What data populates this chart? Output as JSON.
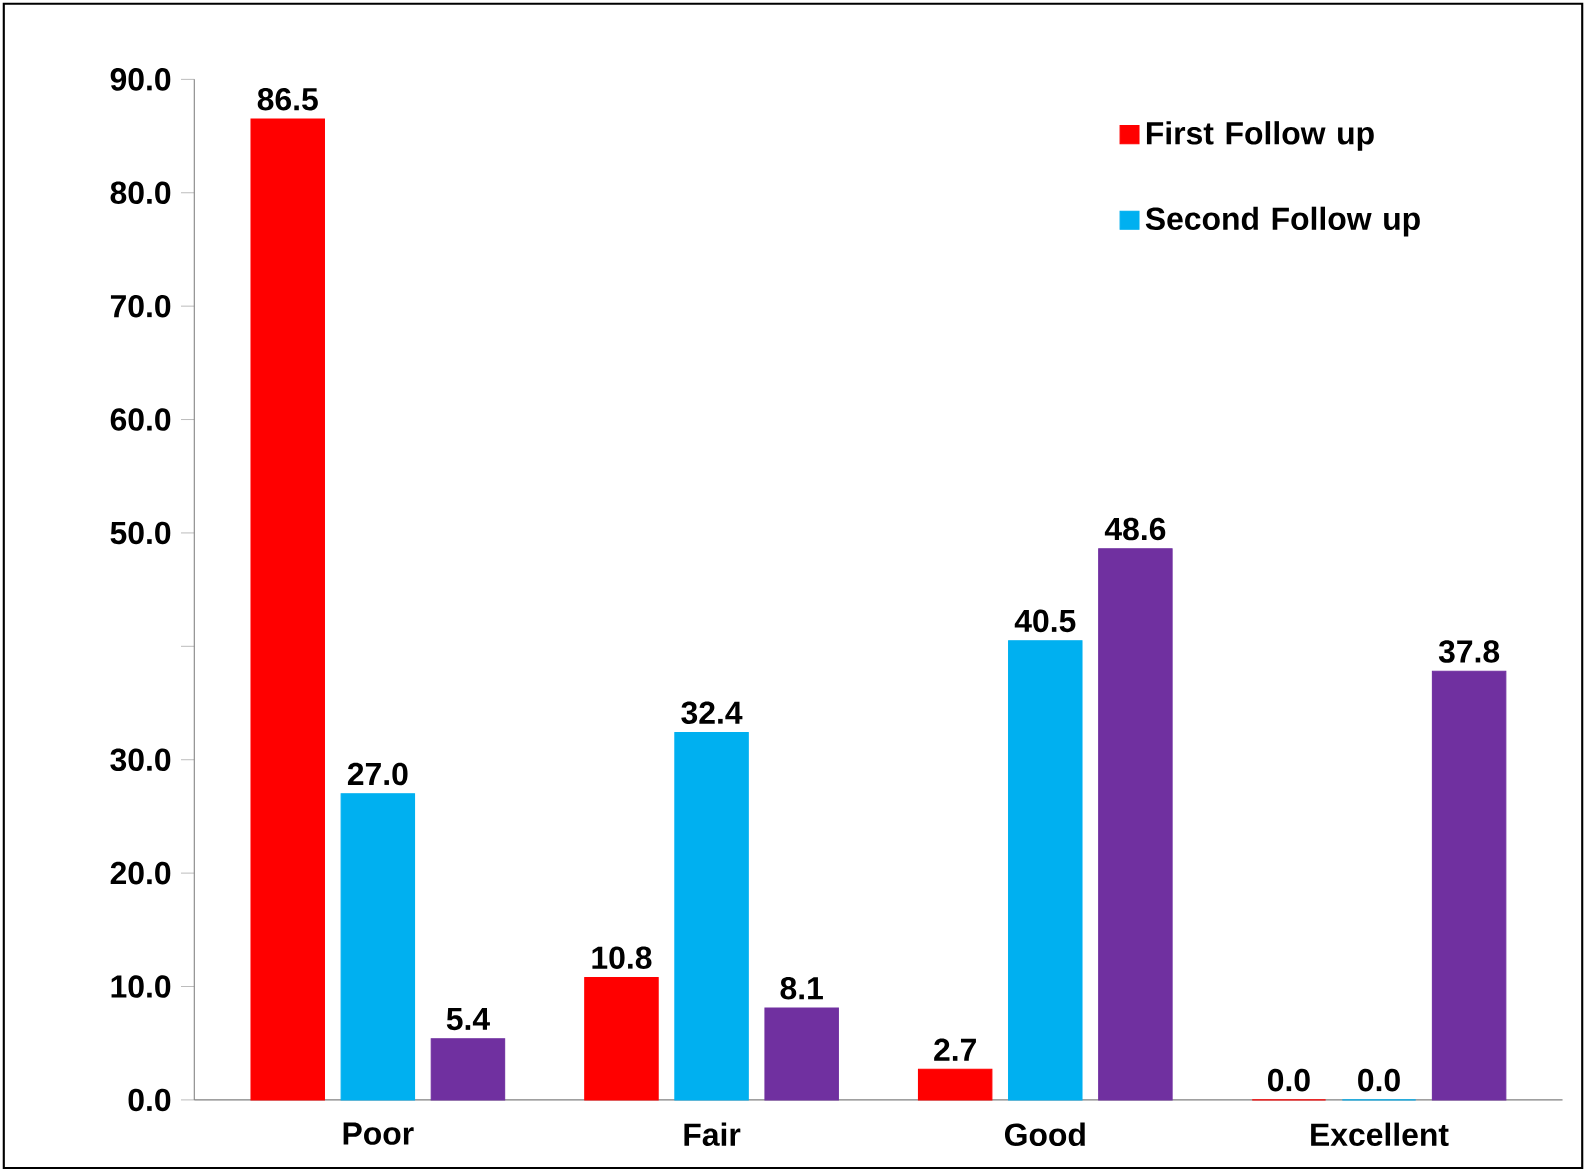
{
  "chart_data": {
    "type": "bar",
    "categories": [
      "Poor",
      "Fair",
      "Good",
      "Excellent"
    ],
    "series": [
      {
        "name": "First Follow up",
        "color": "#ff0000",
        "values": [
          86.5,
          10.8,
          2.7,
          0.0
        ],
        "value_labels": [
          "86.5",
          "10.8",
          "2.7",
          "0.0"
        ]
      },
      {
        "name": "Second Follow up",
        "color": "#00b0f0",
        "values": [
          27.0,
          32.4,
          40.5,
          0.0
        ],
        "value_labels": [
          "27.0",
          "32.4",
          "40.5",
          "0.0"
        ]
      },
      {
        "color": "#7030a0",
        "values": [
          5.4,
          8.1,
          48.6,
          37.8
        ],
        "value_labels": [
          "5.4",
          "8.1",
          "48.6",
          "37.8"
        ]
      }
    ],
    "ylim": [
      0,
      90
    ],
    "yticks": [
      {
        "value": 0,
        "label": "0.0"
      },
      {
        "value": 10,
        "label": "10.0"
      },
      {
        "value": 20,
        "label": "20.0"
      },
      {
        "value": 30,
        "label": "30.0"
      },
      {
        "value": 40,
        "label": null
      },
      {
        "value": 50,
        "label": "50.0"
      },
      {
        "value": 60,
        "label": "60.0"
      },
      {
        "value": 70,
        "label": "70.0"
      },
      {
        "value": 80,
        "label": "80.0"
      },
      {
        "value": 90,
        "label": "90.0"
      }
    ],
    "grid": false,
    "legend": "top right"
  }
}
